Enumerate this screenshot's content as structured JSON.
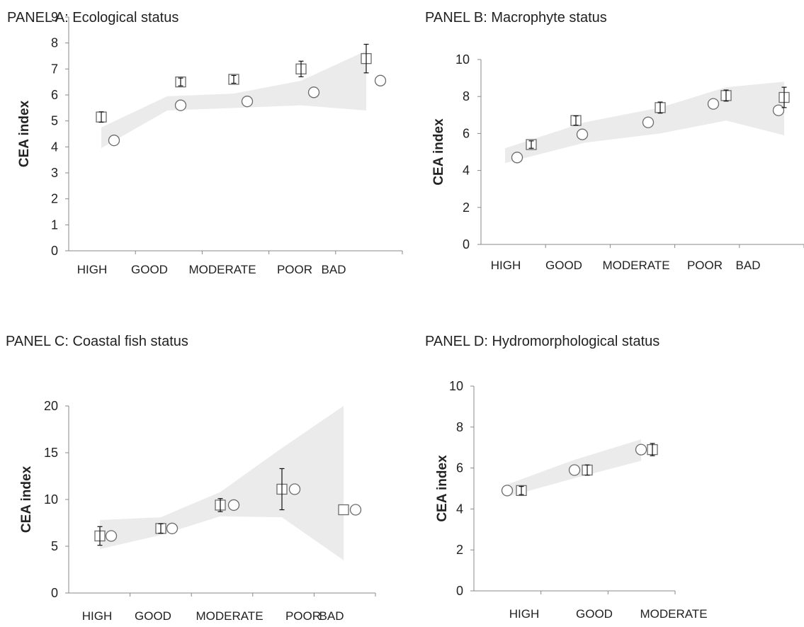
{
  "chart_data": [
    {
      "type": "scatter",
      "title": "PANEL A: Ecological status",
      "ylabel": "CEA index",
      "xlabel": "",
      "categories": [
        "HIGH",
        "GOOD",
        "MODERATE",
        "POOR",
        "BAD"
      ],
      "ylim": [
        0,
        9
      ],
      "yticks": [
        0,
        1,
        2,
        3,
        4,
        5,
        6,
        7,
        8,
        9
      ],
      "ytick_labels": [
        "0",
        "1",
        "2",
        "3",
        "4",
        "5",
        "6",
        "7",
        "8",
        "9"
      ],
      "series": [
        {
          "marker": "square",
          "values": [
            5.15,
            6.5,
            6.6,
            7.0,
            7.4
          ],
          "err": [
            0.2,
            0.15,
            0.15,
            0.3,
            0.55
          ]
        },
        {
          "marker": "circle",
          "values": [
            4.25,
            5.6,
            5.75,
            6.1,
            6.55
          ]
        }
      ],
      "band": {
        "lower": [
          3.95,
          5.4,
          5.5,
          5.6,
          5.4
        ],
        "upper": [
          4.75,
          5.95,
          6.05,
          6.55,
          7.7
        ]
      },
      "colors": {
        "band": "#ebebeb",
        "axis": "#888888"
      }
    },
    {
      "type": "scatter",
      "title": "PANEL B: Macrophyte status",
      "ylabel": "CEA index",
      "xlabel": "",
      "categories": [
        "HIGH",
        "GOOD",
        "MODERATE",
        "POOR",
        "BAD"
      ],
      "ylim": [
        0,
        10
      ],
      "yticks": [
        0,
        2,
        4,
        6,
        8,
        10
      ],
      "ytick_labels": [
        "0",
        "2",
        "4",
        "6",
        "8",
        "10"
      ],
      "series": [
        {
          "marker": "square",
          "values": [
            5.4,
            6.7,
            7.4,
            8.05,
            7.95
          ],
          "err": [
            0.2,
            0.25,
            0.3,
            0.3,
            0.55
          ]
        },
        {
          "marker": "circle",
          "values": [
            4.7,
            5.95,
            6.6,
            7.6,
            7.25
          ]
        }
      ],
      "band": {
        "lower": [
          4.4,
          5.5,
          6.0,
          6.7,
          5.9
        ],
        "upper": [
          5.2,
          6.6,
          7.4,
          8.5,
          8.8
        ]
      },
      "colors": {
        "band": "#ebebeb",
        "axis": "#888888"
      }
    },
    {
      "type": "scatter",
      "title": "PANEL C: Coastal fish status",
      "ylabel": "CEA index",
      "xlabel": "",
      "categories": [
        "HIGH",
        "GOOD",
        "MODERATE",
        "POOR",
        "BAD"
      ],
      "ylim": [
        0,
        20
      ],
      "yticks": [
        0,
        5,
        10,
        15,
        20
      ],
      "ytick_labels": [
        "0",
        "5",
        "10",
        "15",
        "20"
      ],
      "series": [
        {
          "marker": "square",
          "values": [
            6.1,
            6.9,
            9.4,
            11.1,
            8.9
          ],
          "err": [
            1.0,
            0.5,
            0.7,
            2.2,
            0
          ]
        },
        {
          "marker": "circle",
          "values": [
            6.1,
            6.9,
            9.4,
            11.1,
            8.9
          ]
        }
      ],
      "band": {
        "lower": [
          4.7,
          6.2,
          8.2,
          8.1,
          3.5
        ],
        "upper": [
          7.8,
          8.1,
          10.8,
          15.5,
          20
        ]
      },
      "colors": {
        "band": "#ebebeb",
        "axis": "#888888"
      }
    },
    {
      "type": "scatter",
      "title": "PANEL D: Hydromorphological status",
      "ylabel": "CEA index",
      "xlabel": "",
      "categories": [
        "HIGH",
        "GOOD",
        "MODERATE"
      ],
      "ylim": [
        0,
        10
      ],
      "yticks": [
        0,
        2,
        4,
        6,
        8,
        10
      ],
      "ytick_labels": [
        "0",
        "2",
        "4",
        "6",
        "8",
        "10"
      ],
      "series": [
        {
          "marker": "square",
          "values": [
            4.9,
            5.9,
            6.9
          ],
          "err": [
            0.2,
            0.25,
            0.3
          ]
        },
        {
          "marker": "circle",
          "values": [
            4.9,
            5.9,
            6.9
          ]
        }
      ],
      "band": {
        "lower": [
          4.6,
          5.5,
          6.35
        ],
        "upper": [
          5.2,
          6.4,
          7.4
        ]
      },
      "colors": {
        "band": "#ebebeb",
        "axis": "#888888"
      }
    }
  ]
}
